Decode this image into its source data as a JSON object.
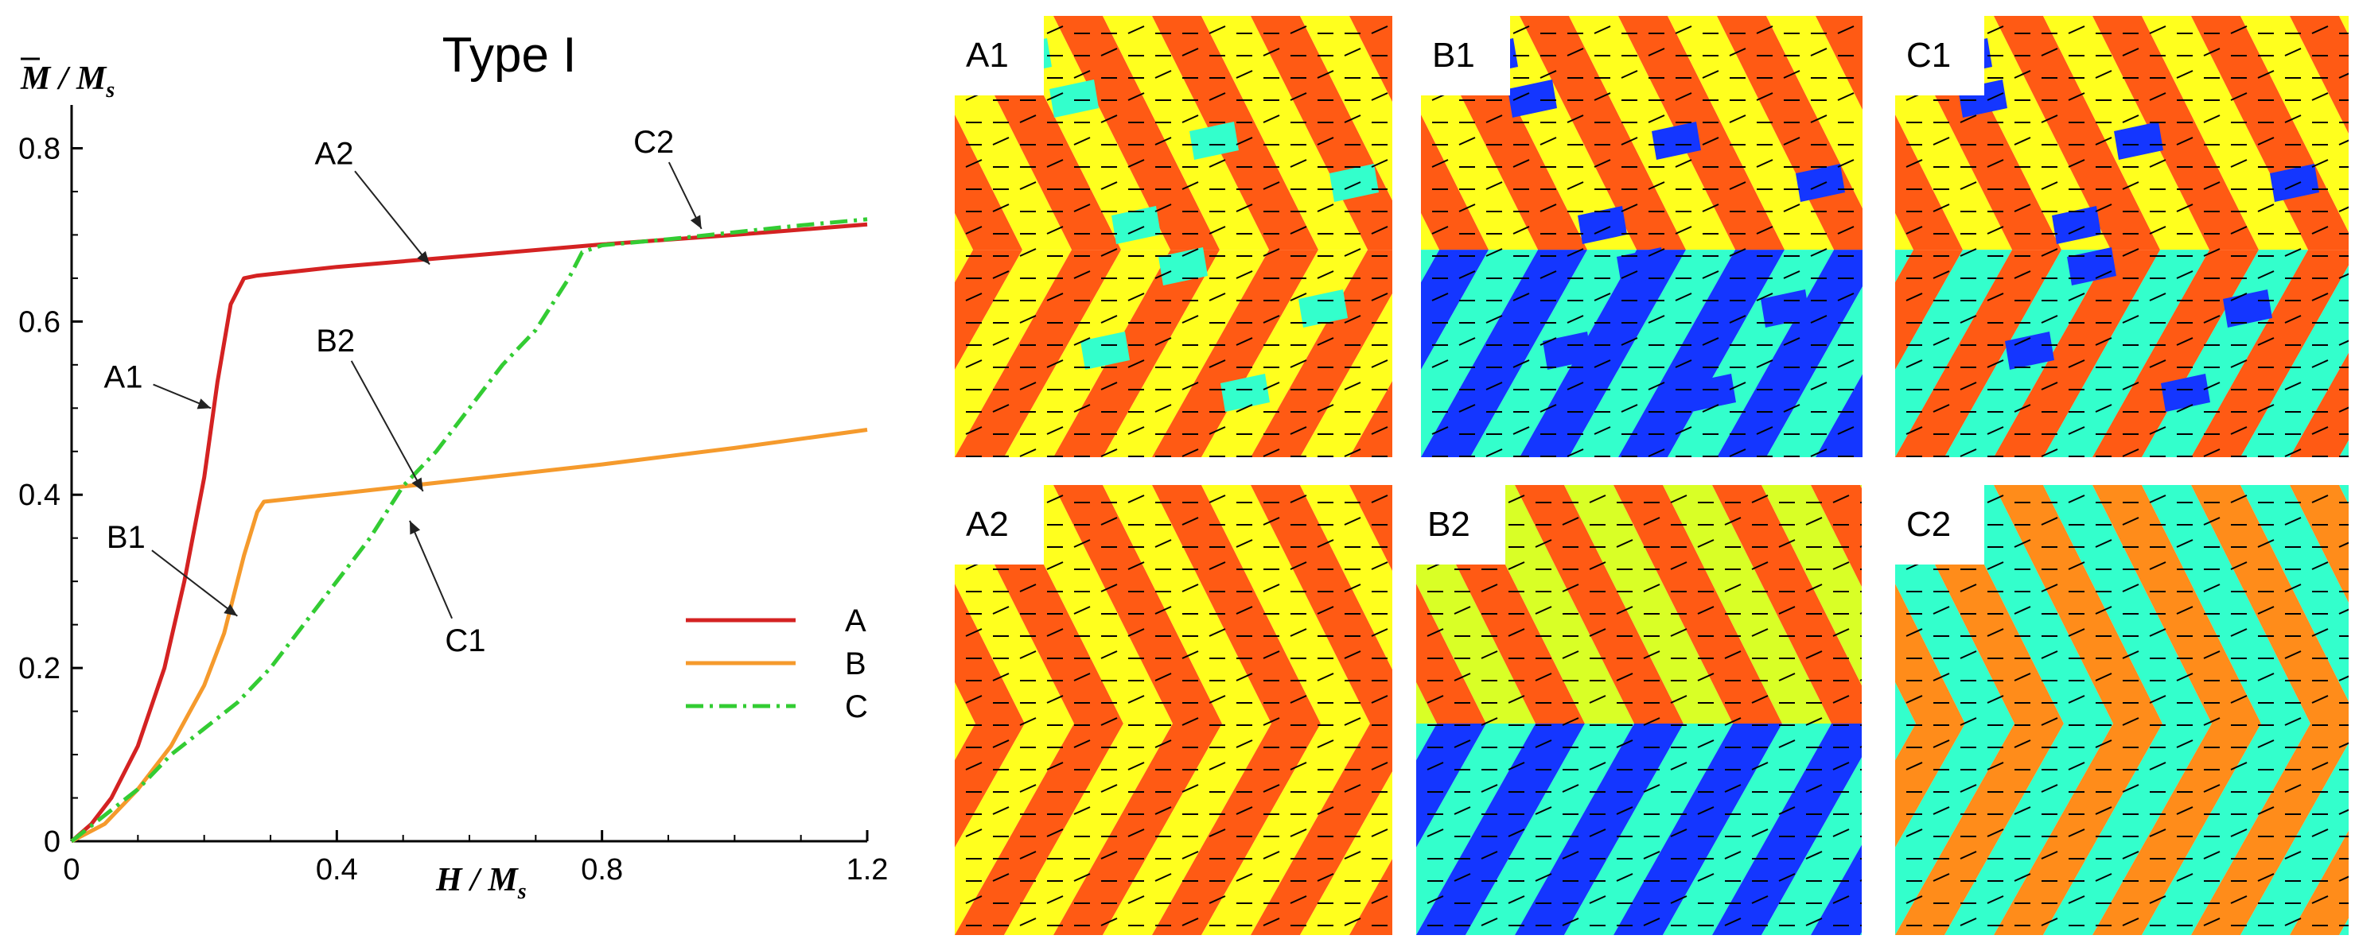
{
  "chart_data": {
    "type": "line",
    "title": "Type I",
    "xlabel": "H / M",
    "xlabel_sub": "s",
    "ylabel": "M / M",
    "ylabel_sub": "s",
    "xlim": [
      0,
      1.2
    ],
    "ylim": [
      0,
      0.85
    ],
    "xticks": [
      0,
      0.4,
      0.8,
      1.2
    ],
    "xtick_labels": [
      "0",
      "0.4",
      "0.8",
      "1.2"
    ],
    "yticks": [
      0,
      0.2,
      0.4,
      0.6,
      0.8
    ],
    "ytick_labels": [
      "0",
      "0.2",
      "0.4",
      "0.6",
      "0.8"
    ],
    "legend_position": "right-middle",
    "series": [
      {
        "name": "A",
        "color": "#d42222",
        "style": "solid",
        "x": [
          0,
          0.03,
          0.06,
          0.1,
          0.14,
          0.17,
          0.2,
          0.22,
          0.24,
          0.26,
          0.28,
          0.4,
          0.6,
          0.8,
          1.0,
          1.2
        ],
        "y": [
          0,
          0.02,
          0.05,
          0.11,
          0.2,
          0.3,
          0.42,
          0.53,
          0.62,
          0.65,
          0.653,
          0.663,
          0.676,
          0.689,
          0.7,
          0.712
        ]
      },
      {
        "name": "B",
        "color": "#f59a2c",
        "style": "solid",
        "x": [
          0,
          0.05,
          0.1,
          0.15,
          0.2,
          0.23,
          0.26,
          0.28,
          0.29,
          0.4,
          0.6,
          0.8,
          1.0,
          1.2
        ],
        "y": [
          0,
          0.02,
          0.06,
          0.11,
          0.18,
          0.24,
          0.33,
          0.38,
          0.392,
          0.401,
          0.418,
          0.435,
          0.454,
          0.475
        ]
      },
      {
        "name": "C",
        "color": "#33cc33",
        "style": "dashdot",
        "x": [
          0,
          0.05,
          0.1,
          0.15,
          0.2,
          0.25,
          0.3,
          0.35,
          0.4,
          0.45,
          0.5,
          0.55,
          0.6,
          0.65,
          0.7,
          0.75,
          0.77,
          0.8,
          0.9,
          1.0,
          1.1,
          1.2
        ],
        "y": [
          0,
          0.03,
          0.06,
          0.1,
          0.13,
          0.16,
          0.2,
          0.25,
          0.3,
          0.35,
          0.41,
          0.45,
          0.5,
          0.55,
          0.59,
          0.65,
          0.68,
          0.688,
          0.695,
          0.703,
          0.711,
          0.718
        ]
      }
    ],
    "annotations": [
      {
        "label": "A2",
        "at": [
          0.54,
          0.666
        ]
      },
      {
        "label": "C2",
        "at": [
          0.95,
          0.707
        ]
      },
      {
        "label": "A1",
        "at": [
          0.21,
          0.5
        ]
      },
      {
        "label": "B2",
        "at": [
          0.53,
          0.404
        ]
      },
      {
        "label": "B1",
        "at": [
          0.25,
          0.26
        ]
      },
      {
        "label": "C1",
        "at": [
          0.51,
          0.37
        ]
      }
    ]
  },
  "panels": [
    {
      "label": "A1",
      "colors": [
        "#ff5a14",
        "#ffff1e",
        "#ff5a14",
        "#ffff1e"
      ],
      "defects": true
    },
    {
      "label": "B1",
      "colors": [
        "#ff5a14",
        "#ffff1e",
        "#1436ff",
        "#33ffcc"
      ],
      "defects": true
    },
    {
      "label": "C1",
      "colors": [
        "#ff5a14",
        "#ffff1e",
        "#ff5a14",
        "#33ffcc"
      ],
      "defects": true
    },
    {
      "label": "A2",
      "colors": [
        "#ff5a14",
        "#ffff1e",
        "#ff5a14",
        "#ffff1e"
      ],
      "defects": false
    },
    {
      "label": "B2",
      "colors": [
        "#ff5a14",
        "#d9ff26",
        "#1436ff",
        "#33ffcc"
      ],
      "defects": false
    },
    {
      "label": "C2",
      "colors": [
        "#ff8c1a",
        "#33ffcc",
        "#ff8c1a",
        "#33ffcc"
      ],
      "defects": false
    }
  ]
}
